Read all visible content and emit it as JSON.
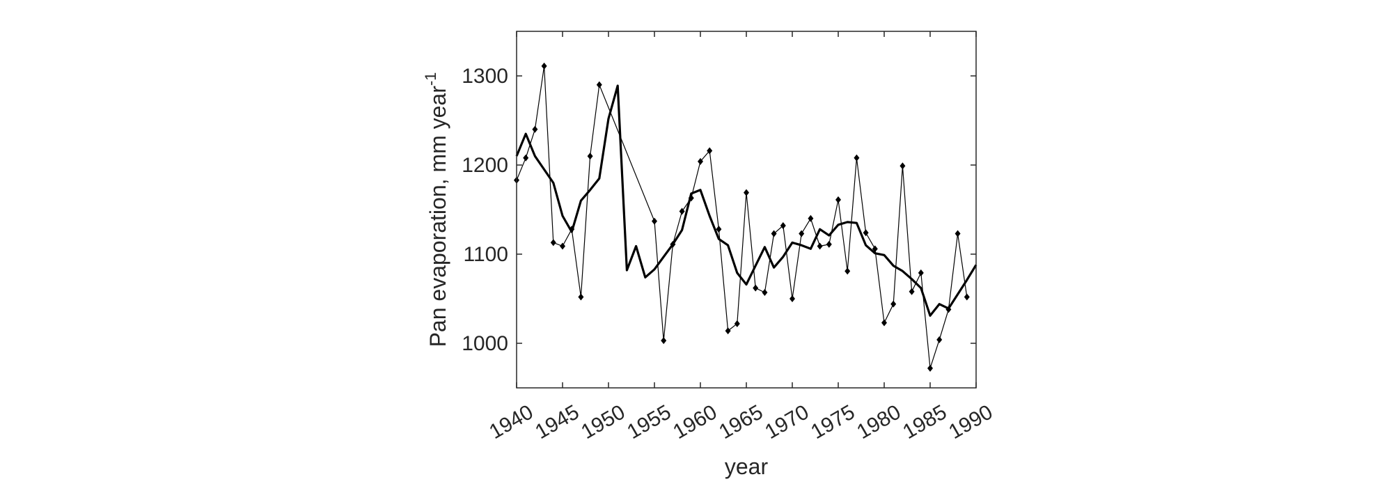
{
  "chart_data": {
    "type": "line",
    "title": "",
    "xlabel": "year",
    "ylabel": "Pan evaporation, mm year",
    "ylabel_superscript": "-1",
    "xlim": [
      1940,
      1990
    ],
    "ylim": [
      950,
      1350
    ],
    "x_ticks": [
      1940,
      1945,
      1950,
      1955,
      1960,
      1965,
      1970,
      1975,
      1980,
      1985,
      1990
    ],
    "x_tick_labels": [
      "1940",
      "1945",
      "1950",
      "1955",
      "1960",
      "1965",
      "1970",
      "1975",
      "1980",
      "1985",
      "1990"
    ],
    "y_ticks": [
      1000,
      1100,
      1200,
      1300
    ],
    "y_tick_labels": [
      "1000",
      "1100",
      "1200",
      "1300"
    ],
    "grid": false,
    "series": [
      {
        "style": "thin-line-diamond-markers",
        "color": "#000000",
        "points": [
          [
            1940,
            1183
          ],
          [
            1941,
            1208
          ],
          [
            1942,
            1240
          ],
          [
            1943,
            1311
          ],
          [
            1944,
            1113
          ],
          [
            1945,
            1109
          ],
          [
            1946,
            1128
          ],
          [
            1947,
            1052
          ],
          [
            1948,
            1210
          ],
          [
            1949,
            1290
          ],
          [
            1955,
            1137
          ],
          [
            1956,
            1003
          ],
          [
            1957,
            1111
          ],
          [
            1958,
            1148
          ],
          [
            1959,
            1163
          ],
          [
            1960,
            1204
          ],
          [
            1961,
            1216
          ],
          [
            1962,
            1128
          ],
          [
            1963,
            1014
          ],
          [
            1964,
            1022
          ],
          [
            1965,
            1169
          ],
          [
            1966,
            1062
          ],
          [
            1967,
            1057
          ],
          [
            1968,
            1123
          ],
          [
            1969,
            1132
          ],
          [
            1970,
            1050
          ],
          [
            1971,
            1123
          ],
          [
            1972,
            1140
          ],
          [
            1973,
            1109
          ],
          [
            1974,
            1111
          ],
          [
            1975,
            1161
          ],
          [
            1976,
            1081
          ],
          [
            1977,
            1208
          ],
          [
            1978,
            1124
          ],
          [
            1979,
            1106
          ],
          [
            1980,
            1023
          ],
          [
            1981,
            1044
          ],
          [
            1982,
            1199
          ],
          [
            1983,
            1058
          ],
          [
            1984,
            1079
          ],
          [
            1985,
            972
          ],
          [
            1986,
            1004
          ],
          [
            1987,
            1038
          ],
          [
            1988,
            1123
          ],
          [
            1989,
            1052
          ]
        ]
      },
      {
        "style": "thick-line",
        "color": "#000000",
        "points": [
          [
            1940,
            1210
          ],
          [
            1941,
            1235
          ],
          [
            1942,
            1210
          ],
          [
            1943,
            1195
          ],
          [
            1944,
            1180
          ],
          [
            1945,
            1143
          ],
          [
            1946,
            1125
          ],
          [
            1947,
            1160
          ],
          [
            1948,
            1172
          ],
          [
            1949,
            1185
          ],
          [
            1950,
            1252
          ],
          [
            1951,
            1289
          ],
          [
            1952,
            1082
          ],
          [
            1953,
            1109
          ],
          [
            1954,
            1074
          ],
          [
            1955,
            1083
          ],
          [
            1956,
            1097
          ],
          [
            1957,
            1111
          ],
          [
            1958,
            1127
          ],
          [
            1959,
            1168
          ],
          [
            1960,
            1172
          ],
          [
            1961,
            1143
          ],
          [
            1962,
            1117
          ],
          [
            1963,
            1110
          ],
          [
            1964,
            1079
          ],
          [
            1965,
            1066
          ],
          [
            1966,
            1087
          ],
          [
            1967,
            1108
          ],
          [
            1968,
            1085
          ],
          [
            1969,
            1097
          ],
          [
            1970,
            1113
          ],
          [
            1971,
            1110
          ],
          [
            1972,
            1106
          ],
          [
            1973,
            1128
          ],
          [
            1974,
            1121
          ],
          [
            1975,
            1133
          ],
          [
            1976,
            1136
          ],
          [
            1977,
            1135
          ],
          [
            1978,
            1110
          ],
          [
            1979,
            1101
          ],
          [
            1980,
            1099
          ],
          [
            1981,
            1087
          ],
          [
            1982,
            1081
          ],
          [
            1983,
            1072
          ],
          [
            1984,
            1062
          ],
          [
            1985,
            1031
          ],
          [
            1986,
            1044
          ],
          [
            1987,
            1039
          ],
          [
            1988,
            1055
          ],
          [
            1989,
            1071
          ],
          [
            1990,
            1088
          ]
        ]
      }
    ]
  }
}
